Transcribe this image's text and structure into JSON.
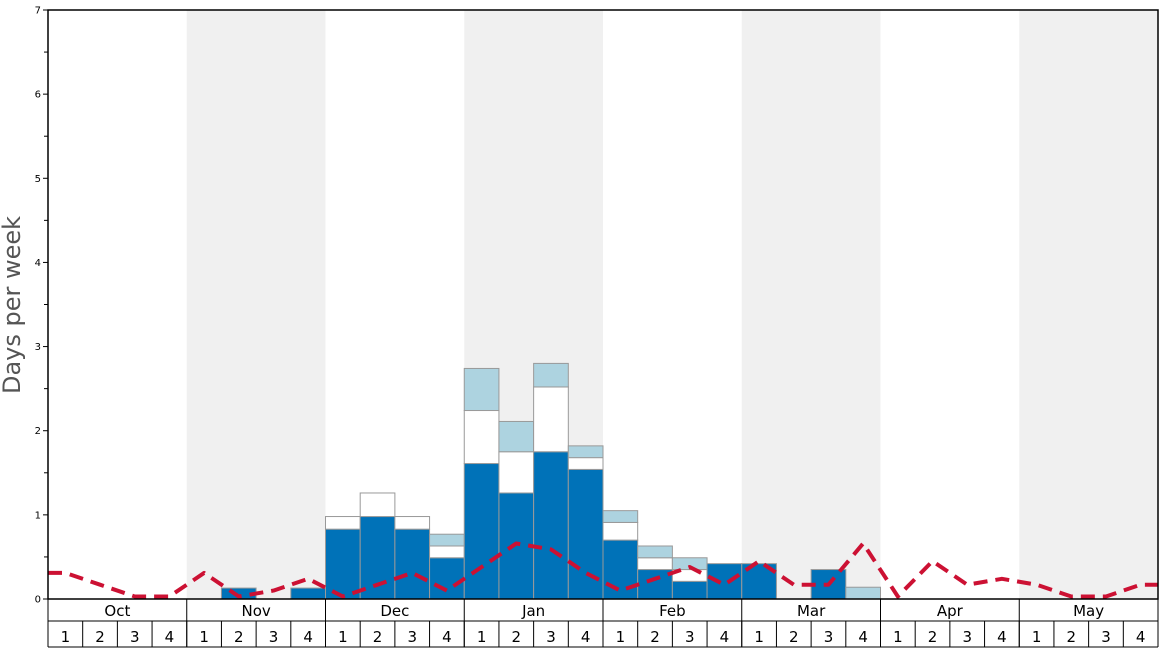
{
  "chart_data": {
    "type": "bar",
    "stacked": true,
    "ylabel": "Days per week",
    "ylim": [
      0,
      7
    ],
    "yticks": [
      "0",
      "1",
      "2",
      "3",
      "4",
      "5",
      "6",
      "7"
    ],
    "months": [
      "Oct",
      "Nov",
      "Dec",
      "Jan",
      "Feb",
      "Mar",
      "Apr",
      "May"
    ],
    "week_labels": [
      "1",
      "2",
      "3",
      "4"
    ],
    "shaded_months": [
      "Nov",
      "Jan",
      "Mar",
      "May"
    ],
    "colors": {
      "series_1": "#0072b8",
      "series_2": "#ffffff",
      "series_3": "#add3e0",
      "line": "#cc1133",
      "shade": "#f0f0f0",
      "bar_edge": "#999999"
    },
    "series": [
      {
        "values": [
          0,
          0,
          0,
          0,
          0,
          0.13,
          0,
          0.13,
          0.83,
          0.98,
          0.83,
          0.49,
          1.61,
          1.26,
          1.75,
          1.54,
          0.7,
          0.35,
          0.21,
          0.42,
          0.42,
          0,
          0.35,
          0,
          0,
          0,
          0,
          0,
          0,
          0,
          0,
          0
        ]
      },
      {
        "values": [
          0,
          0,
          0,
          0,
          0,
          0,
          0,
          0,
          0.15,
          0.28,
          0.15,
          0.14,
          0.63,
          0.49,
          0.77,
          0.14,
          0.21,
          0.14,
          0.14,
          0,
          0,
          0,
          0,
          0,
          0,
          0,
          0,
          0,
          0,
          0,
          0,
          0
        ]
      },
      {
        "values": [
          0,
          0,
          0,
          0,
          0,
          0,
          0,
          0,
          0,
          0,
          0,
          0.14,
          0.5,
          0.36,
          0.28,
          0.14,
          0.14,
          0.14,
          0.14,
          0,
          0,
          0,
          0,
          0.14,
          0,
          0,
          0,
          0,
          0,
          0,
          0,
          0
        ]
      },
      {
        "type": "line",
        "values": [
          0.31,
          0.17,
          0.03,
          0.03,
          0.31,
          0.03,
          0.1,
          0.24,
          0.03,
          0.17,
          0.31,
          0.1,
          0.38,
          0.66,
          0.59,
          0.31,
          0.1,
          0.24,
          0.38,
          0.17,
          0.45,
          0.17,
          0.17,
          0.66,
          0.03,
          0.45,
          0.17,
          0.24,
          0.17,
          0.03,
          0.03,
          0.17
        ]
      }
    ]
  }
}
